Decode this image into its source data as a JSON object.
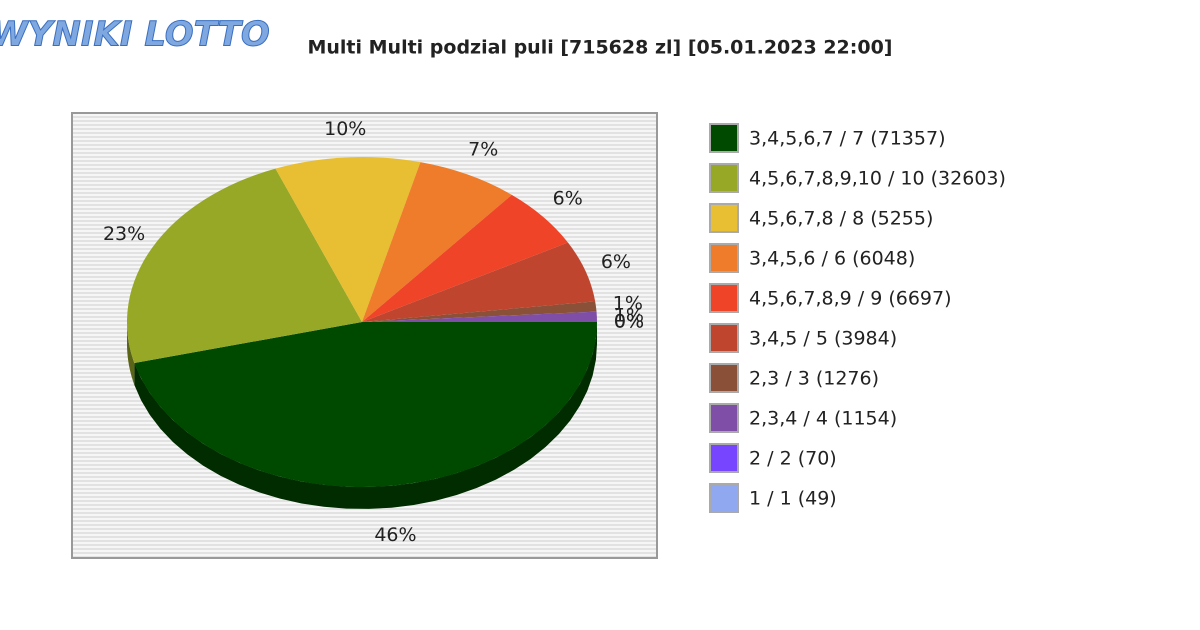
{
  "logo": "WYNIKI LOTTO",
  "chart_data": {
    "type": "pie",
    "title": "Multi Multi podzial puli [715628 zl] [05.01.2023 22:00]",
    "categories": [
      "3,4,5,6,7 / 7 (71357)",
      "4,5,6,7,8,9,10 / 10 (32603)",
      "4,5,6,7,8 / 8 (5255)",
      "3,4,5,6 / 6 (6048)",
      "4,5,6,7,8,9 / 9 (6697)",
      "3,4,5 / 5 (3984)",
      "2,3 / 3 (1276)",
      "2,3,4 / 4 (1154)",
      "2 / 2 (70)",
      "1 / 1 (49)"
    ],
    "values": [
      46,
      23,
      10,
      7,
      6,
      6,
      1,
      1,
      0,
      0
    ],
    "value_labels": [
      "46%",
      "23%",
      "10%",
      "7%",
      "6%",
      "6%",
      "1%",
      "1%",
      "0%",
      "0%"
    ],
    "colors": [
      "#004a00",
      "#97a826",
      "#e8bf32",
      "#ee7c2a",
      "#f04428",
      "#c0452f",
      "#8a5038",
      "#7f4fa8",
      "#7744ff",
      "#8fa8f0"
    ],
    "legend": "right"
  }
}
